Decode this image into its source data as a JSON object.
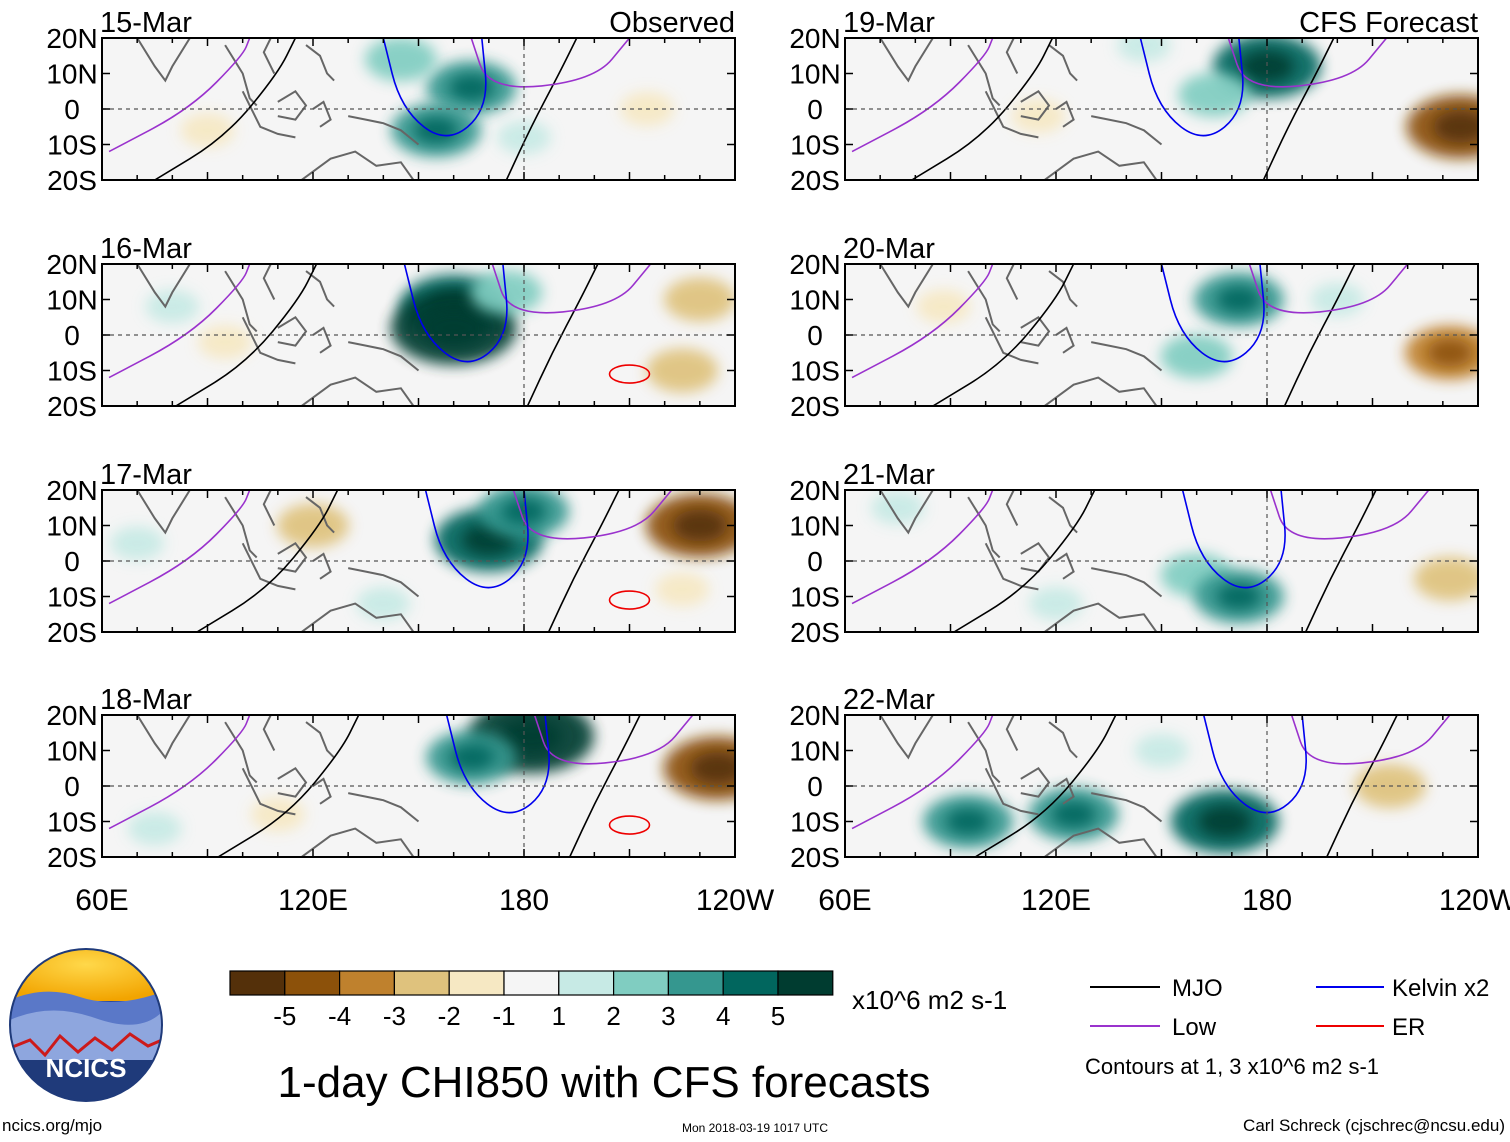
{
  "chart_data": {
    "type": "heatmap",
    "title": "1-day CHI850 with CFS forecasts",
    "variable": "CHI850",
    "units": "x10^6 m2 s-1",
    "x_ticks": [
      "60E",
      "120E",
      "180",
      "120W"
    ],
    "x_tick_values": [
      60,
      120,
      180,
      240
    ],
    "y_ticks": [
      "20N",
      "10N",
      "0",
      "10S",
      "20S"
    ],
    "y_tick_values": [
      20,
      10,
      0,
      -10,
      -20
    ],
    "xlim": [
      60,
      240
    ],
    "ylim": [
      -20,
      20
    ],
    "observed_label": "Observed",
    "forecast_label": "CFS Forecast",
    "colorbar": {
      "ticks": [
        "-5",
        "-4",
        "-3",
        "-2",
        "-1",
        "1",
        "2",
        "3",
        "4",
        "5"
      ],
      "colors": [
        "#54300a",
        "#8c510a",
        "#bf812d",
        "#dfc27d",
        "#f6e8c3",
        "#f5f5f5",
        "#c7eae5",
        "#80cdc1",
        "#35978f",
        "#01665e",
        "#003c30"
      ]
    },
    "legend": [
      {
        "label": "MJO",
        "color": "#000000"
      },
      {
        "label": "Kelvin x2",
        "color": "#0000ee"
      },
      {
        "label": "Low",
        "color": "#9a32cd"
      },
      {
        "label": "ER",
        "color": "#ee0000"
      }
    ],
    "contours_note": "Contours at 1, 3 x10^6 m2 s-1",
    "panels": [
      {
        "date": "15-Mar",
        "source": "Observed",
        "header": "Observed",
        "anomalies": [
          {
            "lon": 165,
            "lat": 6,
            "value": 3
          },
          {
            "lon": 155,
            "lat": -6,
            "value": 3
          },
          {
            "lon": 145,
            "lat": 14,
            "value": 2
          },
          {
            "lon": 180,
            "lat": -8,
            "value": 1
          },
          {
            "lon": 90,
            "lat": -6,
            "value": -1
          },
          {
            "lon": 215,
            "lat": 0,
            "value": -1
          }
        ]
      },
      {
        "date": "16-Mar",
        "source": "Observed",
        "header": "",
        "anomalies": [
          {
            "lon": 160,
            "lat": 8,
            "value": 4
          },
          {
            "lon": 160,
            "lat": 2,
            "value": 5
          },
          {
            "lon": 175,
            "lat": 12,
            "value": 2
          },
          {
            "lon": 80,
            "lat": 8,
            "value": 1
          },
          {
            "lon": 95,
            "lat": -2,
            "value": -1
          },
          {
            "lon": 230,
            "lat": 10,
            "value": -2
          },
          {
            "lon": 225,
            "lat": -10,
            "value": -2
          }
        ]
      },
      {
        "date": "17-Mar",
        "source": "Observed",
        "header": "",
        "anomalies": [
          {
            "lon": 170,
            "lat": 6,
            "value": 4
          },
          {
            "lon": 180,
            "lat": 14,
            "value": 3
          },
          {
            "lon": 70,
            "lat": 5,
            "value": 1
          },
          {
            "lon": 140,
            "lat": -12,
            "value": 1
          },
          {
            "lon": 120,
            "lat": 10,
            "value": -2
          },
          {
            "lon": 230,
            "lat": 10,
            "value": -4
          },
          {
            "lon": 225,
            "lat": -8,
            "value": -1
          }
        ]
      },
      {
        "date": "18-Mar",
        "source": "Observed",
        "header": "",
        "anomalies": [
          {
            "lon": 182,
            "lat": 14,
            "value": 5
          },
          {
            "lon": 165,
            "lat": 8,
            "value": 3
          },
          {
            "lon": 75,
            "lat": -12,
            "value": 1
          },
          {
            "lon": 110,
            "lat": -8,
            "value": -1
          },
          {
            "lon": 235,
            "lat": 5,
            "value": -4
          }
        ]
      },
      {
        "date": "19-Mar",
        "source": "CFS Forecast",
        "header": "CFS Forecast",
        "anomalies": [
          {
            "lon": 180,
            "lat": 12,
            "value": 4
          },
          {
            "lon": 165,
            "lat": 4,
            "value": 2
          },
          {
            "lon": 145,
            "lat": 18,
            "value": 1
          },
          {
            "lon": 235,
            "lat": -5,
            "value": -4
          },
          {
            "lon": 115,
            "lat": -2,
            "value": -1
          }
        ]
      },
      {
        "date": "20-Mar",
        "source": "CFS Forecast",
        "header": "",
        "anomalies": [
          {
            "lon": 172,
            "lat": 10,
            "value": 3
          },
          {
            "lon": 160,
            "lat": -6,
            "value": 2
          },
          {
            "lon": 200,
            "lat": 10,
            "value": 1
          },
          {
            "lon": 232,
            "lat": -5,
            "value": -3
          },
          {
            "lon": 88,
            "lat": 8,
            "value": -1
          }
        ]
      },
      {
        "date": "21-Mar",
        "source": "CFS Forecast",
        "header": "",
        "anomalies": [
          {
            "lon": 120,
            "lat": -12,
            "value": 1
          },
          {
            "lon": 160,
            "lat": -4,
            "value": 2
          },
          {
            "lon": 172,
            "lat": -10,
            "value": 3
          },
          {
            "lon": 75,
            "lat": 15,
            "value": 1
          },
          {
            "lon": 232,
            "lat": -5,
            "value": -2
          }
        ]
      },
      {
        "date": "22-Mar",
        "source": "CFS Forecast",
        "header": "",
        "anomalies": [
          {
            "lon": 95,
            "lat": -10,
            "value": 3
          },
          {
            "lon": 125,
            "lat": -8,
            "value": 3
          },
          {
            "lon": 168,
            "lat": -10,
            "value": 4
          },
          {
            "lon": 150,
            "lat": 10,
            "value": 1
          },
          {
            "lon": 215,
            "lat": 0,
            "value": -2
          }
        ]
      }
    ]
  },
  "branding": {
    "org": "NCICS",
    "url": "ncics.org/mjo",
    "timestamp": "Mon 2018-03-19 1017 UTC",
    "author": "Carl Schreck (cjschrec@ncsu.edu)"
  }
}
